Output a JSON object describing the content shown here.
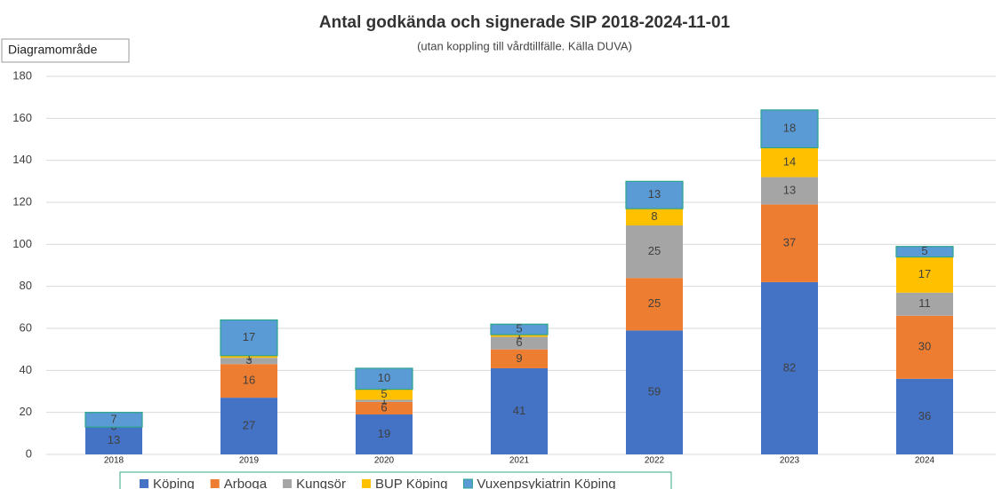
{
  "tooltip": "Diagramområde",
  "chart_data": {
    "type": "stacked_bar",
    "title": "Antal godkända och signerade SIP 2018-2024-11-01",
    "subtitle": "(utan koppling till vårdtillfälle. Källa DUVA)",
    "categories": [
      "2018",
      "2019",
      "2020",
      "2021",
      "2022",
      "2023",
      "2024"
    ],
    "series": [
      {
        "name": "Köping",
        "color": "#4472c4",
        "values": [
          13,
          27,
          19,
          41,
          59,
          82,
          36
        ]
      },
      {
        "name": "Arboga",
        "color": "#ed7d31",
        "values": [
          0,
          16,
          6,
          9,
          25,
          37,
          30
        ]
      },
      {
        "name": "Kungsör",
        "color": "#a5a5a5",
        "values": [
          null,
          3,
          1,
          6,
          25,
          13,
          11
        ]
      },
      {
        "name": "BUP Köping",
        "color": "#ffc000",
        "values": [
          null,
          1,
          5,
          1,
          8,
          14,
          17
        ]
      },
      {
        "name": "Vuxenpsykiatrin Köping",
        "color": "#5b9bd5",
        "values": [
          7,
          17,
          10,
          5,
          13,
          18,
          5
        ]
      }
    ],
    "ylim": [
      0,
      180
    ],
    "yticks": [
      0,
      20,
      40,
      60,
      80,
      100,
      120,
      140,
      160,
      180
    ],
    "grid": true,
    "legend": "bottom"
  }
}
